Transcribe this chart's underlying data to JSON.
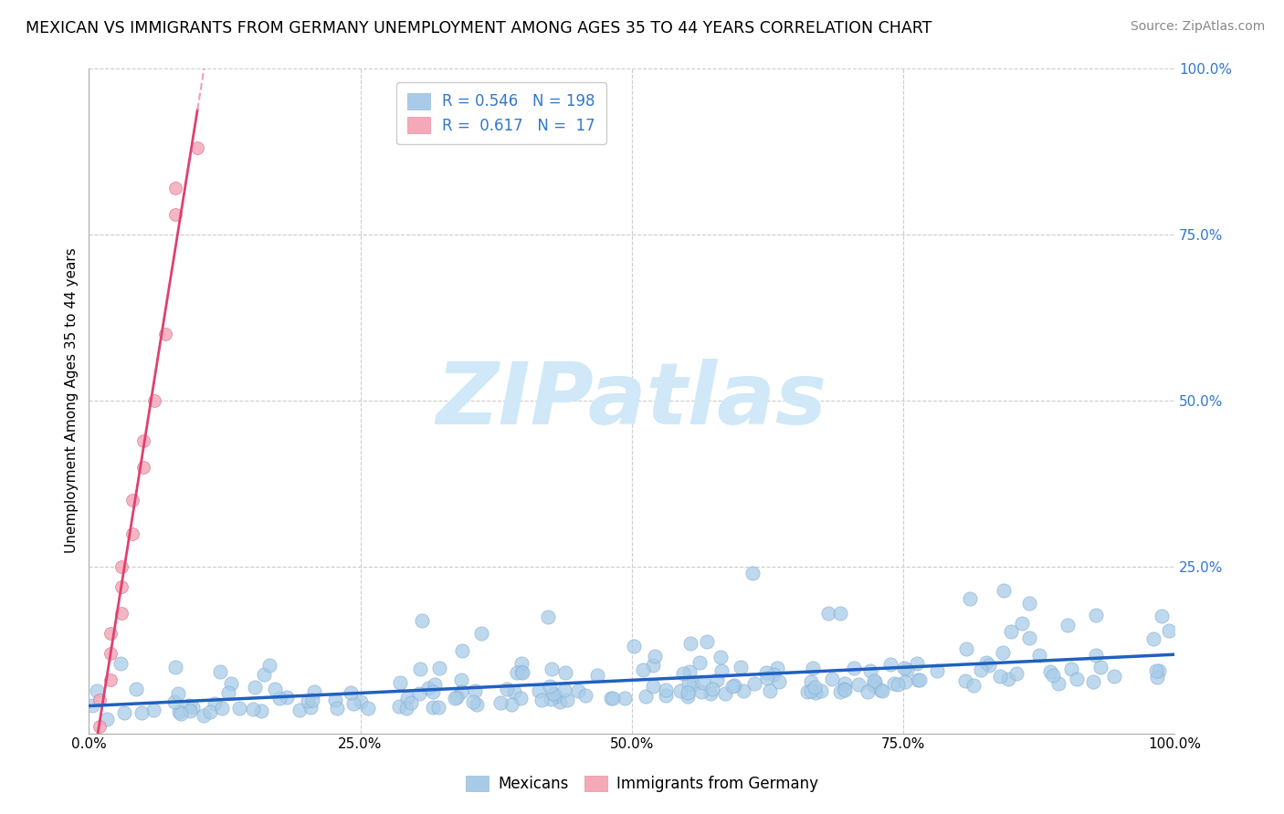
{
  "title": "MEXICAN VS IMMIGRANTS FROM GERMANY UNEMPLOYMENT AMONG AGES 35 TO 44 YEARS CORRELATION CHART",
  "source": "Source: ZipAtlas.com",
  "ylabel": "Unemployment Among Ages 35 to 44 years",
  "xlim": [
    0.0,
    1.0
  ],
  "ylim": [
    0.0,
    1.0
  ],
  "xticks": [
    0.0,
    0.25,
    0.5,
    0.75,
    1.0
  ],
  "yticks": [
    0.25,
    0.5,
    0.75,
    1.0
  ],
  "xtick_labels": [
    "0.0%",
    "25.0%",
    "50.0%",
    "75.0%",
    "100.0%"
  ],
  "right_ytick_labels": [
    "25.0%",
    "50.0%",
    "75.0%",
    "100.0%"
  ],
  "blue_R": 0.546,
  "blue_N": 198,
  "pink_R": 0.617,
  "pink_N": 17,
  "blue_color": "#a8cce8",
  "pink_color": "#f4a8b8",
  "blue_line_color": "#2060c0",
  "pink_line_color": "#e04070",
  "pink_dash_color": "#f0a0b8",
  "watermark_color": "#d0e8f8",
  "legend_label_blue": "Mexicans",
  "legend_label_pink": "Immigrants from Germany",
  "title_fontsize": 12.5,
  "axis_tick_fontsize": 11,
  "ylabel_fontsize": 11,
  "source_fontsize": 10,
  "background_color": "#ffffff",
  "grid_color": "#cccccc",
  "blue_seed": 123,
  "pink_seed": 55
}
